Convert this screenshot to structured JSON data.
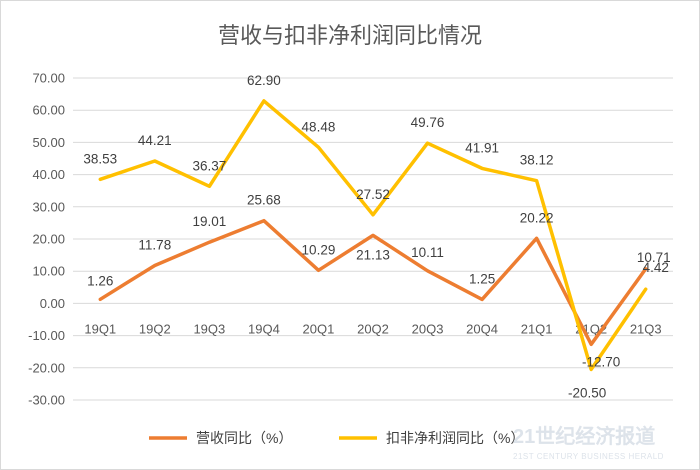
{
  "chart_data": {
    "type": "line",
    "title": "营收与扣非净利润同比情况",
    "categories": [
      "19Q1",
      "19Q2",
      "19Q3",
      "19Q4",
      "20Q1",
      "20Q2",
      "20Q3",
      "20Q4",
      "21Q1",
      "21Q2",
      "21Q3"
    ],
    "series": [
      {
        "name": "营收同比（%）",
        "color": "#ED7D31",
        "values": [
          1.26,
          11.78,
          19.01,
          25.68,
          10.29,
          21.13,
          10.11,
          1.25,
          20.22,
          -12.7,
          10.71
        ]
      },
      {
        "name": "扣非净利润同比（%）",
        "color": "#FFC000",
        "values": [
          38.53,
          44.21,
          36.37,
          62.9,
          48.48,
          27.52,
          49.76,
          41.91,
          38.12,
          -20.5,
          4.42
        ]
      }
    ],
    "ylim": [
      -30,
      70
    ],
    "ytick_step": 10,
    "ytick_decimals": 2,
    "grid": true,
    "legend_position": "bottom",
    "watermark": "21世纪经济报道",
    "watermark_sub": "21ST CENTURY BUSINESS HERALD"
  }
}
